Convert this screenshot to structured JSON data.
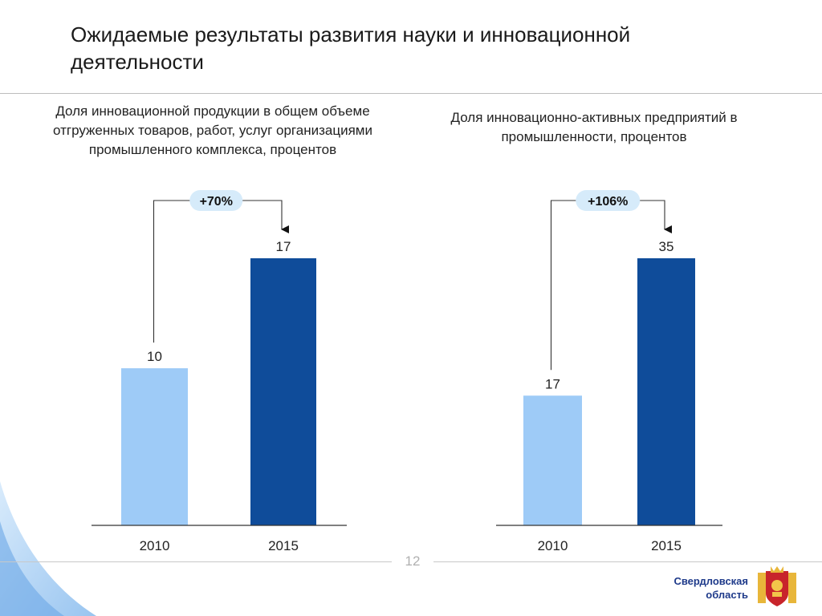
{
  "page": {
    "title": "Ожидаемые результаты развития науки и инновационной деятельности",
    "page_number": "12",
    "region_label_line1": "Свердловская",
    "region_label_line2": "область"
  },
  "colors": {
    "bar_2010": "#9ecbf7",
    "bar_2015": "#0f4c9a",
    "badge_fill": "#d6ebfa",
    "region_text": "#1e3a8a"
  },
  "chart_data": [
    {
      "type": "bar",
      "title": "Доля инновационной продукции в общем объеме отгруженных товаров, работ, услуг организациями промышленного комплекса, процентов",
      "categories": [
        "2010",
        "2015"
      ],
      "values": [
        10,
        17
      ],
      "value_labels": [
        "10",
        "17"
      ],
      "change_label": "+70%",
      "ylim": [
        0,
        17.6
      ]
    },
    {
      "type": "bar",
      "title": "Доля инновационно-активных предприятий в промышленности, процентов",
      "categories": [
        "2010",
        "2015"
      ],
      "values": [
        17,
        35
      ],
      "value_labels": [
        "17",
        "35"
      ],
      "change_label": "+106%",
      "ylim": [
        0,
        36.2
      ]
    }
  ]
}
